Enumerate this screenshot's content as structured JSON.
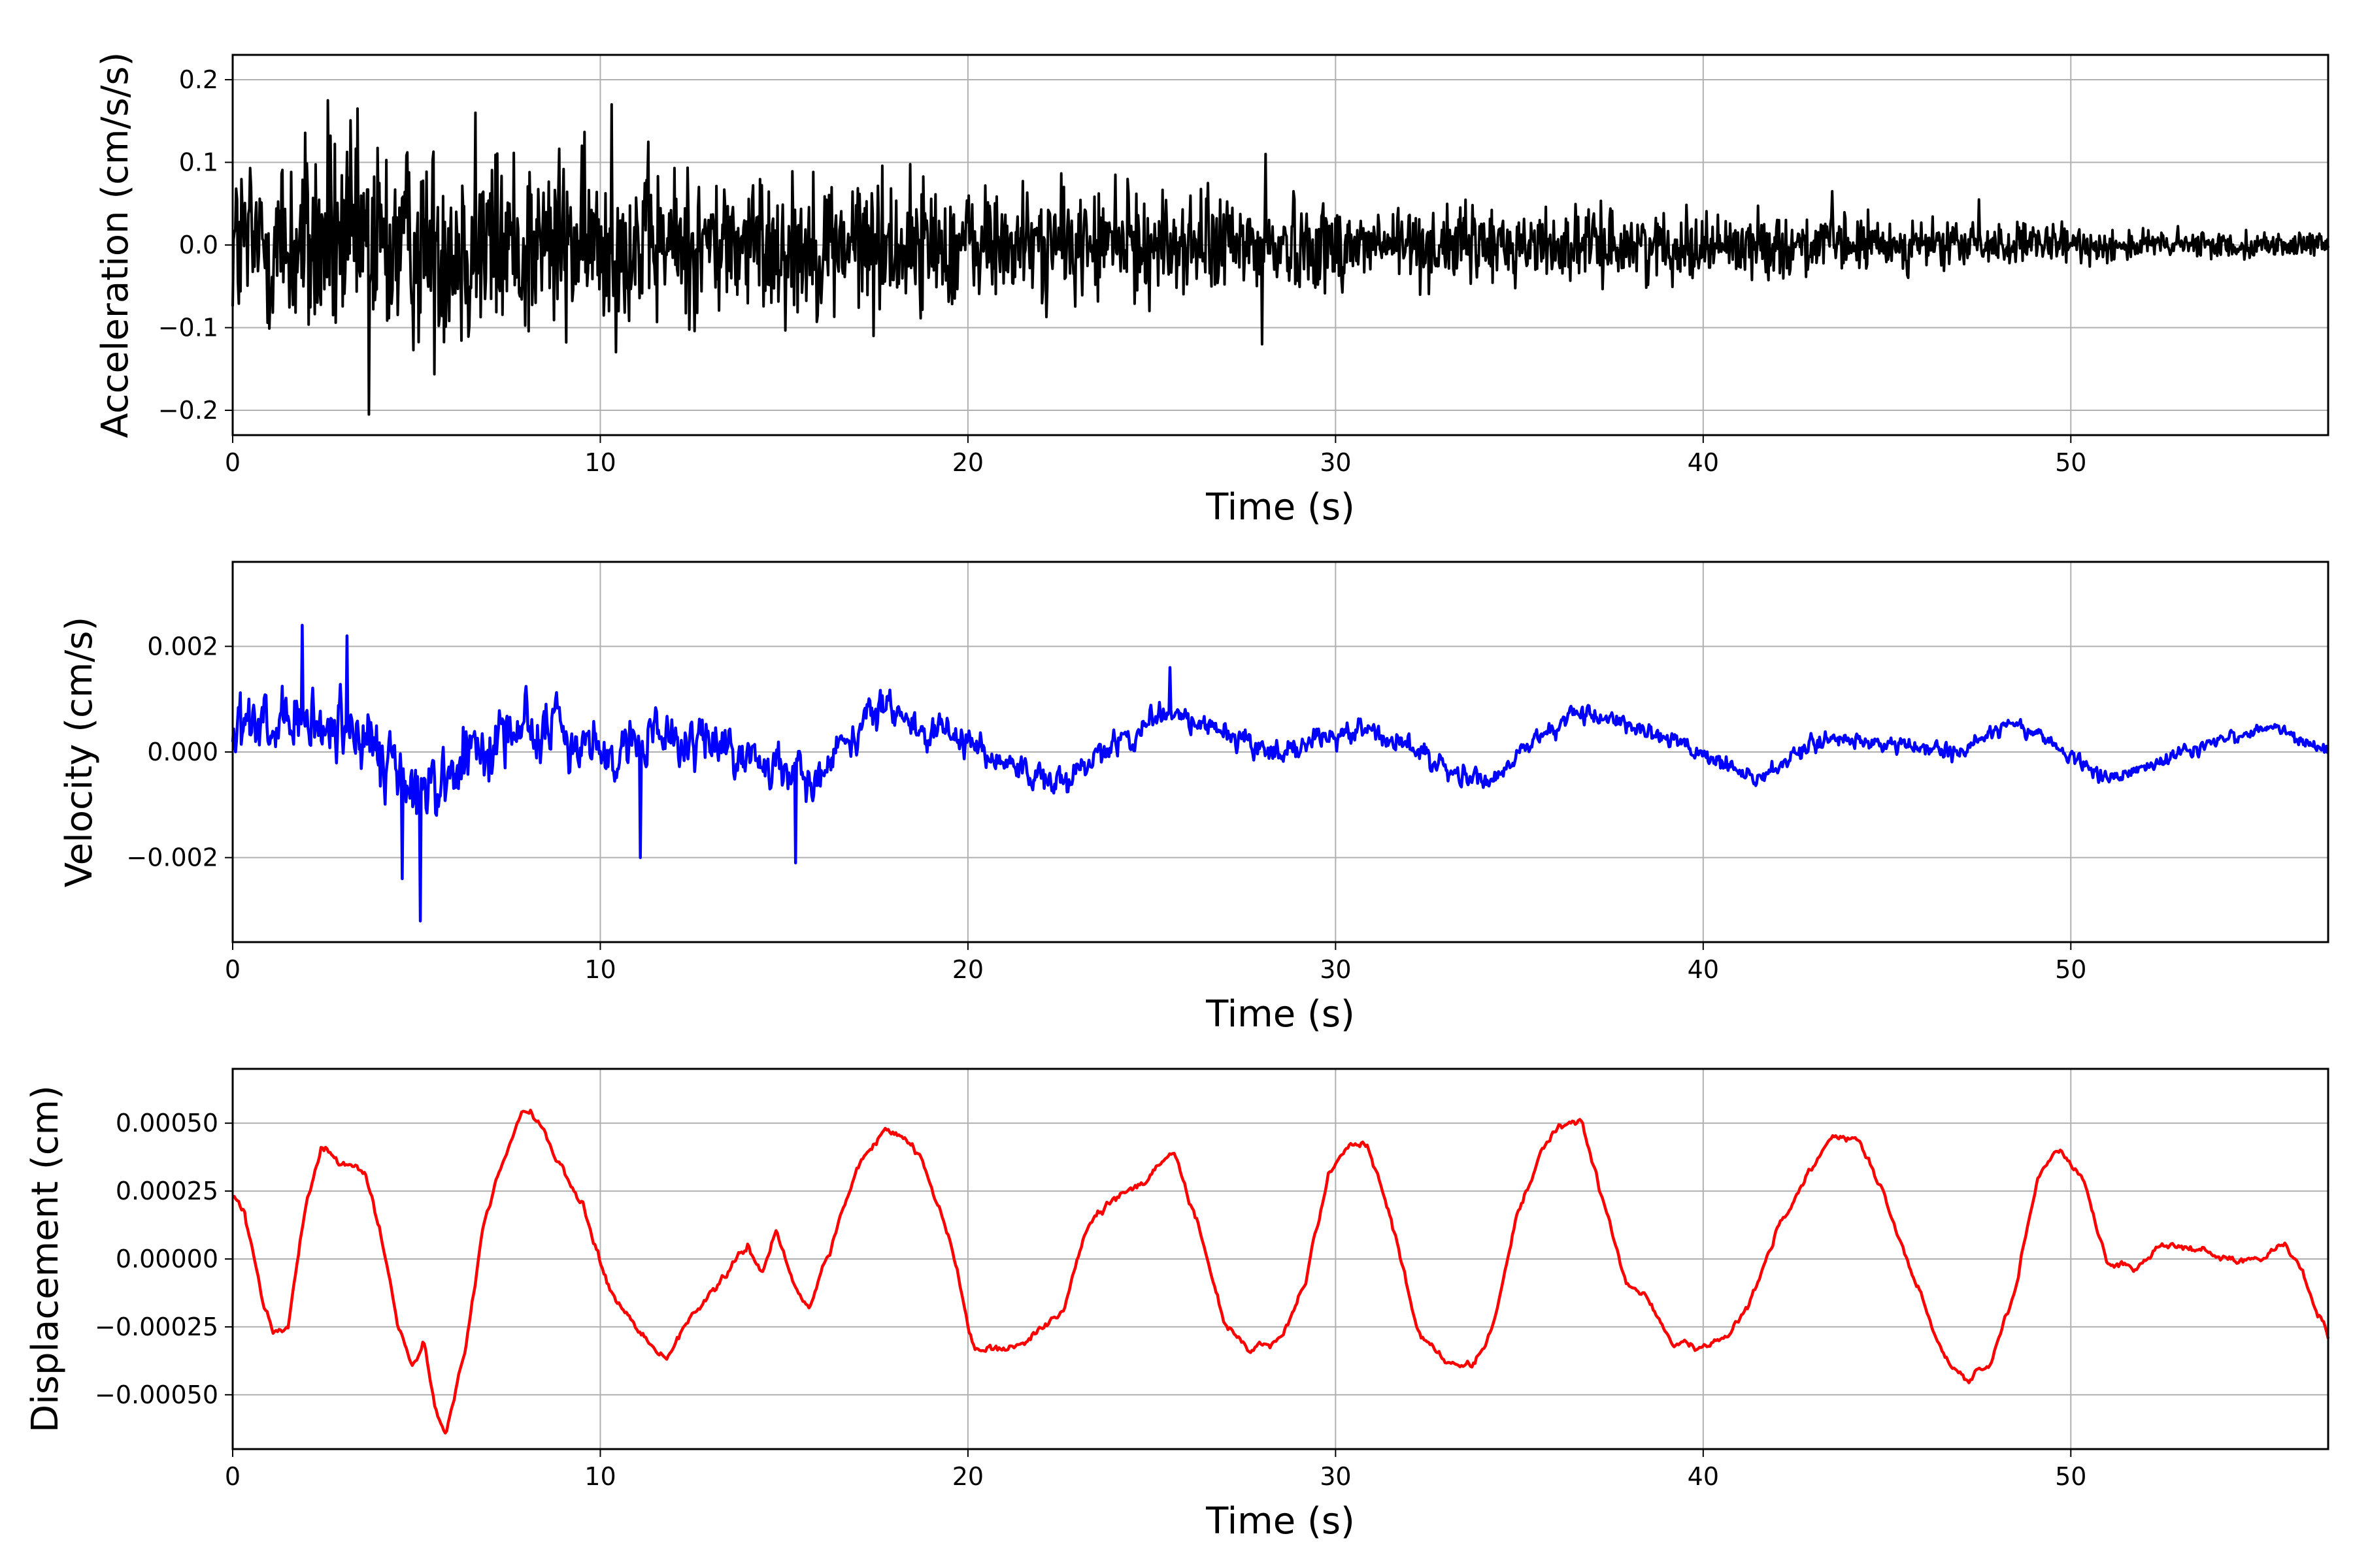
{
  "chart_data": [
    {
      "type": "line",
      "xlabel": "Time (s)",
      "ylabel": "Acceleration (cm/s/s)",
      "xlim": [
        0,
        57
      ],
      "ylim": [
        -0.23,
        0.23
      ],
      "xticks": [
        0,
        10,
        20,
        30,
        40,
        50
      ],
      "xtick_labels": [
        "0",
        "10",
        "20",
        "30",
        "40",
        "50"
      ],
      "yticks": [
        -0.2,
        -0.1,
        0.0,
        0.1,
        0.2
      ],
      "ytick_labels": [
        "−0.2",
        "−0.1",
        "0.0",
        "0.1",
        "0.2"
      ],
      "grid": true,
      "color": "#000000",
      "envelope": {
        "t": [
          0,
          2,
          4,
          6,
          8,
          10,
          12,
          14,
          16,
          17.5,
          20,
          24,
          28,
          32,
          36,
          40,
          44,
          48,
          52,
          57
        ],
        "amp": [
          0.13,
          0.15,
          0.15,
          0.14,
          0.14,
          0.12,
          0.11,
          0.1,
          0.1,
          0.1,
          0.085,
          0.075,
          0.07,
          0.055,
          0.05,
          0.045,
          0.04,
          0.03,
          0.022,
          0.015
        ]
      },
      "peaks": [
        [
          2.6,
          0.175
        ],
        [
          3.7,
          -0.205
        ],
        [
          6.6,
          0.16
        ],
        [
          10.3,
          0.17
        ],
        [
          28.0,
          -0.12
        ],
        [
          28.1,
          0.11
        ],
        [
          24.0,
          0.085
        ],
        [
          43.5,
          0.065
        ],
        [
          47.5,
          0.055
        ]
      ]
    },
    {
      "type": "line",
      "xlabel": "Time (s)",
      "ylabel": "Velocity (cm/s)",
      "xlim": [
        0,
        57
      ],
      "ylim": [
        -0.0036,
        0.0036
      ],
      "xticks": [
        0,
        10,
        20,
        30,
        40,
        50
      ],
      "xtick_labels": [
        "0",
        "10",
        "20",
        "30",
        "40",
        "50"
      ],
      "yticks": [
        -0.002,
        0.0,
        0.002
      ],
      "ytick_labels": [
        "−0.002",
        "0.000",
        "0.002"
      ],
      "grid": true,
      "color": "#0000ff",
      "trend": {
        "t": [
          0,
          3,
          5,
          8,
          10,
          13,
          15.5,
          17.5,
          20,
          22,
          25.5,
          28,
          31,
          34,
          36.5,
          38.5,
          41.5,
          43.5,
          47,
          48.5,
          51,
          55.5,
          57
        ],
        "v": [
          0.0003,
          0.0005,
          -0.0008,
          0.0006,
          0.0,
          0.0003,
          -0.0006,
          0.0008,
          0.0002,
          -0.0007,
          0.0008,
          0.0,
          0.0004,
          -0.0006,
          0.0008,
          0.0004,
          -0.0005,
          0.0003,
          0.0,
          0.0006,
          -0.0005,
          0.0005,
          0.0
        ]
      },
      "noise": {
        "t": [
          0,
          5,
          10,
          16,
          20,
          30,
          40,
          50,
          57
        ],
        "amp": [
          0.0011,
          0.0012,
          0.0009,
          0.0007,
          0.0005,
          0.0004,
          0.0003,
          0.00025,
          0.0002
        ]
      },
      "peaks": [
        [
          1.9,
          0.0024
        ],
        [
          3.1,
          0.0022
        ],
        [
          5.1,
          -0.0032
        ],
        [
          4.6,
          -0.0024
        ],
        [
          11.1,
          -0.002
        ],
        [
          15.3,
          -0.0021
        ],
        [
          25.5,
          0.0016
        ]
      ]
    },
    {
      "type": "line",
      "xlabel": "Time (s)",
      "ylabel": "Displacement (cm)",
      "xlim": [
        0,
        57
      ],
      "ylim": [
        -0.0007,
        0.0007
      ],
      "xticks": [
        0,
        10,
        20,
        30,
        40,
        50
      ],
      "xtick_labels": [
        "0",
        "10",
        "20",
        "30",
        "40",
        "50"
      ],
      "yticks": [
        -0.0005,
        -0.00025,
        0.0,
        0.00025,
        0.0005
      ],
      "ytick_labels": [
        "−0.00050",
        "−0.00025",
        "0.00000",
        "0.00025",
        "0.00050"
      ],
      "grid": true,
      "color": "#ff0000",
      "x": [
        0,
        0.3,
        0.8,
        1.1,
        1.5,
        2.0,
        2.4,
        2.8,
        3.2,
        3.6,
        4.0,
        4.5,
        4.9,
        5.2,
        5.5,
        5.8,
        6.3,
        6.8,
        7.3,
        7.9,
        8.4,
        8.9,
        9.5,
        10.2,
        11.0,
        11.8,
        12.3,
        13.0,
        13.6,
        14.0,
        14.4,
        14.8,
        15.2,
        15.7,
        16.3,
        17.0,
        17.7,
        18.3,
        18.8,
        19.5,
        20.2,
        20.8,
        21.5,
        22.0,
        22.6,
        23.2,
        24.0,
        24.8,
        25.6,
        26.3,
        27.0,
        27.7,
        28.5,
        29.2,
        29.8,
        30.4,
        30.9,
        31.5,
        32.2,
        33.0,
        33.7,
        34.3,
        34.9,
        35.6,
        36.2,
        36.7,
        37.3,
        37.9,
        38.5,
        39.2,
        39.9,
        40.5,
        41.2,
        42.0,
        42.8,
        43.5,
        44.2,
        44.9,
        45.8,
        46.5,
        47.2,
        47.8,
        48.5,
        49.1,
        49.6,
        50.3,
        51.0,
        51.7,
        52.5,
        53.5,
        54.5,
        55.2,
        55.8,
        56.3,
        57.0
      ],
      "y": [
        0.00023,
        0.00018,
        -0.00015,
        -0.00028,
        -0.00025,
        0.0002,
        0.0004,
        0.00038,
        0.00035,
        0.0003,
        0.0001,
        -0.00025,
        -0.0004,
        -0.0003,
        -0.00055,
        -0.00064,
        -0.00035,
        0.0001,
        0.00035,
        0.00055,
        0.0005,
        0.00035,
        0.0002,
        -0.0001,
        -0.00025,
        -0.00037,
        -0.00025,
        -0.00012,
        -2e-05,
        5e-05,
        -5e-05,
        0.0001,
        -8e-05,
        -0.00018,
        5e-05,
        0.00035,
        0.00047,
        0.00045,
        0.00035,
        8e-05,
        -0.00035,
        -0.00033,
        -0.0003,
        -0.00025,
        -0.0002,
        0.0001,
        0.00023,
        0.00028,
        0.0004,
        0.0001,
        -0.00025,
        -0.00033,
        -0.0003,
        -8e-05,
        0.0003,
        0.00044,
        0.0004,
        0.00015,
        -0.00025,
        -0.00038,
        -0.00039,
        -0.00025,
        0.00015,
        0.0004,
        0.00051,
        0.0005,
        0.0002,
        -0.0001,
        -0.00015,
        -0.00032,
        -0.00033,
        -0.0003,
        -0.0002,
        0.0001,
        0.0003,
        0.00045,
        0.00045,
        0.00025,
        -0.0001,
        -0.00035,
        -0.00045,
        -0.00038,
        -0.0001,
        0.0003,
        0.0004,
        0.0003,
        -2e-05,
        -3e-05,
        5e-05,
        3e-05,
        0.0,
        1e-05,
        5e-05,
        -5e-05,
        -0.0003
      ]
    }
  ]
}
